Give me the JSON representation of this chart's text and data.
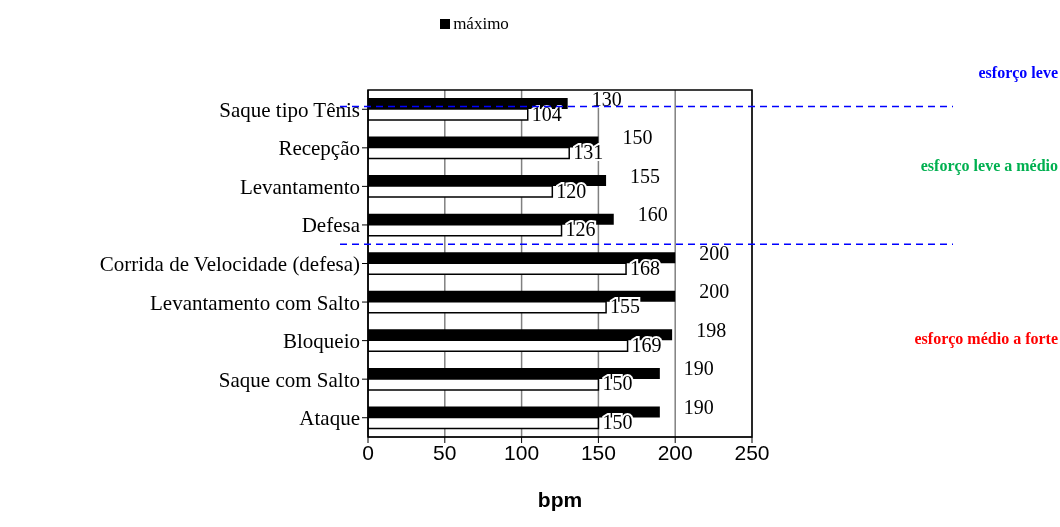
{
  "chart_data": {
    "type": "bar",
    "orientation": "horizontal",
    "xlabel": "bpm",
    "categories": [
      "Saque tipo Tênis",
      "Recepção",
      "Levantamento",
      "Defesa",
      "Corrida de Velocidade (defesa)",
      "Levantamento com Salto",
      "Bloqueio",
      "Saque com Salto",
      "Ataque"
    ],
    "series": [
      {
        "name": "máximo",
        "color": "#000000",
        "values": [
          130,
          150,
          155,
          160,
          200,
          200,
          198,
          190,
          190
        ]
      },
      {
        "color": "#ffffff",
        "values": [
          104,
          131,
          120,
          126,
          168,
          155,
          169,
          150,
          150
        ]
      }
    ],
    "xlim": [
      0,
      250
    ],
    "xticks": [
      0,
      50,
      100,
      150,
      200,
      250
    ],
    "grid": "x",
    "legend": "top",
    "data_labels": true,
    "ref_lines": [
      {
        "axis": "y",
        "value": "Saque tipo Tênis",
        "color": "#0000ff",
        "line_style": "dashed"
      },
      {
        "axis": "y",
        "value": "Corrida de Velocidade (defesa)",
        "color": "#0000ff",
        "line_style": "dashed"
      }
    ],
    "annotations": [
      "esforço leve",
      "esforço leve a médio",
      "esforço médio a forte"
    ]
  }
}
